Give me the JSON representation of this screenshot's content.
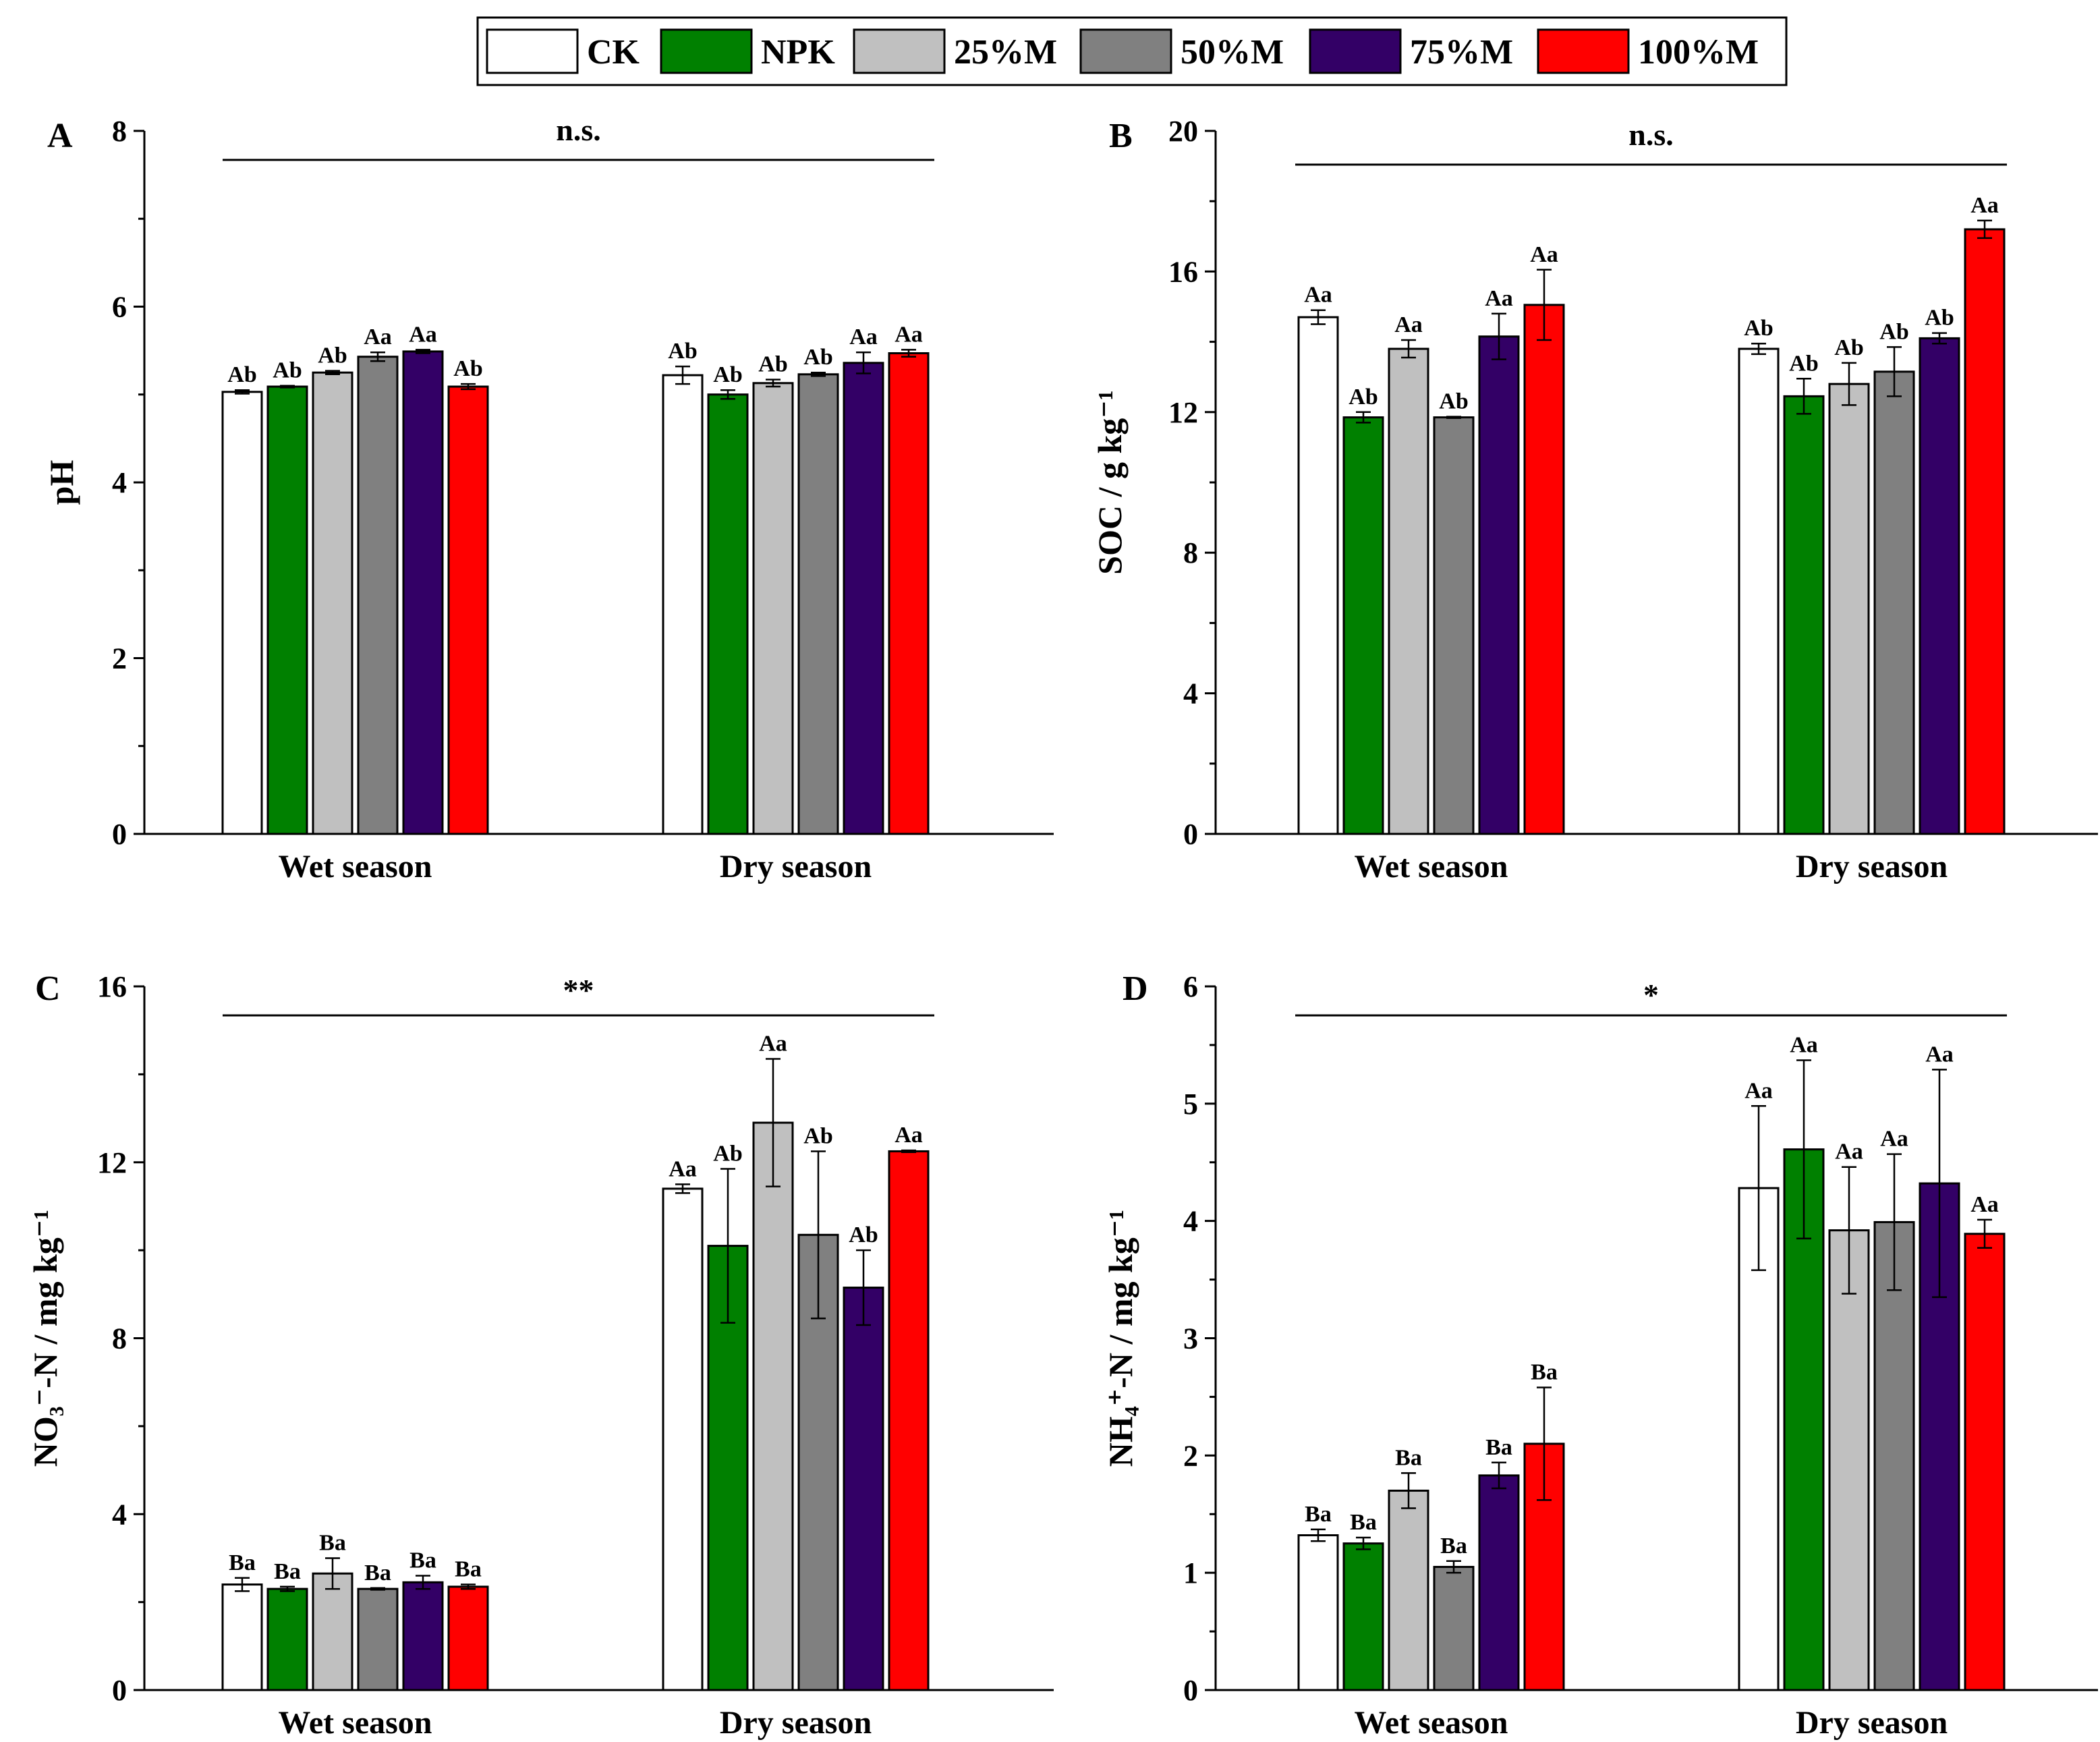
{
  "legend": [
    {
      "name": "CK",
      "color": "#FFFFFF"
    },
    {
      "name": "NPK",
      "color": "#008000"
    },
    {
      "name": "25%M",
      "color": "#C0C0C0"
    },
    {
      "name": "50%M",
      "color": "#808080"
    },
    {
      "name": "75%M",
      "color": "#330066"
    },
    {
      "name": "100%M",
      "color": "#FF0000"
    }
  ],
  "chart_data": [
    {
      "panel": "A",
      "type": "bar",
      "ylabel": "pH",
      "ylim": [
        0,
        8
      ],
      "yticks": [
        0,
        2,
        4,
        6,
        8
      ],
      "categories": [
        "Wet season",
        "Dry season"
      ],
      "significance": "n.s.",
      "series": [
        {
          "name": "CK",
          "values": [
            5.03,
            5.22
          ],
          "errors": [
            0.02,
            0.1
          ],
          "labels": [
            "Ab",
            "Ab"
          ]
        },
        {
          "name": "NPK",
          "values": [
            5.09,
            5.0
          ],
          "errors": [
            0.01,
            0.05
          ],
          "labels": [
            "Ab",
            "Ab"
          ]
        },
        {
          "name": "25%M",
          "values": [
            5.25,
            5.13
          ],
          "errors": [
            0.02,
            0.04
          ],
          "labels": [
            "Ab",
            "Ab"
          ]
        },
        {
          "name": "50%M",
          "values": [
            5.43,
            5.23
          ],
          "errors": [
            0.05,
            0.02
          ],
          "labels": [
            "Aa",
            "Ab"
          ]
        },
        {
          "name": "75%M",
          "values": [
            5.49,
            5.36
          ],
          "errors": [
            0.02,
            0.12
          ],
          "labels": [
            "Aa",
            "Aa"
          ]
        },
        {
          "name": "100%M",
          "values": [
            5.09,
            5.47
          ],
          "errors": [
            0.03,
            0.04
          ],
          "labels": [
            "Ab",
            "Aa"
          ]
        }
      ]
    },
    {
      "panel": "B",
      "type": "bar",
      "ylabel": "SOC / g kg⁻¹",
      "ylim": [
        0,
        20
      ],
      "yticks": [
        0,
        4,
        8,
        12,
        16,
        20
      ],
      "categories": [
        "Wet season",
        "Dry season"
      ],
      "significance": "n.s.",
      "series": [
        {
          "name": "CK",
          "values": [
            14.7,
            13.8
          ],
          "errors": [
            0.2,
            0.15
          ],
          "labels": [
            "Aa",
            "Ab"
          ]
        },
        {
          "name": "NPK",
          "values": [
            11.85,
            12.45
          ],
          "errors": [
            0.15,
            0.5
          ],
          "labels": [
            "Ab",
            "Ab"
          ]
        },
        {
          "name": "25%M",
          "values": [
            13.8,
            12.8
          ],
          "errors": [
            0.25,
            0.6
          ],
          "labels": [
            "Aa",
            "Ab"
          ]
        },
        {
          "name": "50%M",
          "values": [
            11.85,
            13.15
          ],
          "errors": [
            0.02,
            0.7
          ],
          "labels": [
            "Ab",
            "Ab"
          ]
        },
        {
          "name": "75%M",
          "values": [
            14.15,
            14.1
          ],
          "errors": [
            0.65,
            0.15
          ],
          "labels": [
            "Aa",
            "Ab"
          ]
        },
        {
          "name": "100%M",
          "values": [
            15.05,
            17.2
          ],
          "errors": [
            1.0,
            0.25
          ],
          "labels": [
            "Aa",
            "Aa"
          ]
        }
      ]
    },
    {
      "panel": "C",
      "type": "bar",
      "ylabel": "NO₃⁻-N / mg kg⁻¹",
      "ylim": [
        0,
        16
      ],
      "yticks": [
        0,
        4,
        8,
        12,
        16
      ],
      "categories": [
        "Wet season",
        "Dry season"
      ],
      "significance": "**",
      "series": [
        {
          "name": "CK",
          "values": [
            2.4,
            11.4
          ],
          "errors": [
            0.15,
            0.1
          ],
          "labels": [
            "Ba",
            "Aa"
          ]
        },
        {
          "name": "NPK",
          "values": [
            2.3,
            10.1
          ],
          "errors": [
            0.05,
            1.75
          ],
          "labels": [
            "Ba",
            "Ab"
          ]
        },
        {
          "name": "25%M",
          "values": [
            2.65,
            12.9
          ],
          "errors": [
            0.35,
            1.45
          ],
          "labels": [
            "Ba",
            "Aa"
          ]
        },
        {
          "name": "50%M",
          "values": [
            2.3,
            10.35
          ],
          "errors": [
            0.02,
            1.9
          ],
          "labels": [
            "Ba",
            "Ab"
          ]
        },
        {
          "name": "75%M",
          "values": [
            2.45,
            9.15
          ],
          "errors": [
            0.15,
            0.85
          ],
          "labels": [
            "Ba",
            "Ab"
          ]
        },
        {
          "name": "100%M",
          "values": [
            2.35,
            12.25
          ],
          "errors": [
            0.05,
            0.02
          ],
          "labels": [
            "Ba",
            "Aa"
          ]
        }
      ]
    },
    {
      "panel": "D",
      "type": "bar",
      "ylabel": "NH₄⁺-N / mg kg⁻¹",
      "ylim": [
        0,
        6
      ],
      "yticks": [
        0,
        1,
        2,
        3,
        4,
        5,
        6
      ],
      "categories": [
        "Wet season",
        "Dry season"
      ],
      "significance": "*",
      "series": [
        {
          "name": "CK",
          "values": [
            1.32,
            4.28
          ],
          "errors": [
            0.05,
            0.7
          ],
          "labels": [
            "Ba",
            "Aa"
          ]
        },
        {
          "name": "NPK",
          "values": [
            1.25,
            4.61
          ],
          "errors": [
            0.05,
            0.76
          ],
          "labels": [
            "Ba",
            "Aa"
          ]
        },
        {
          "name": "25%M",
          "values": [
            1.7,
            3.92
          ],
          "errors": [
            0.15,
            0.54
          ],
          "labels": [
            "Ba",
            "Aa"
          ]
        },
        {
          "name": "50%M",
          "values": [
            1.05,
            3.99
          ],
          "errors": [
            0.05,
            0.58
          ],
          "labels": [
            "Ba",
            "Aa"
          ]
        },
        {
          "name": "75%M",
          "values": [
            1.83,
            4.32
          ],
          "errors": [
            0.11,
            0.97
          ],
          "labels": [
            "Ba",
            "Aa"
          ]
        },
        {
          "name": "100%M",
          "values": [
            2.1,
            3.89
          ],
          "errors": [
            0.48,
            0.12
          ],
          "labels": [
            "Ba",
            "Aa"
          ]
        }
      ]
    }
  ]
}
